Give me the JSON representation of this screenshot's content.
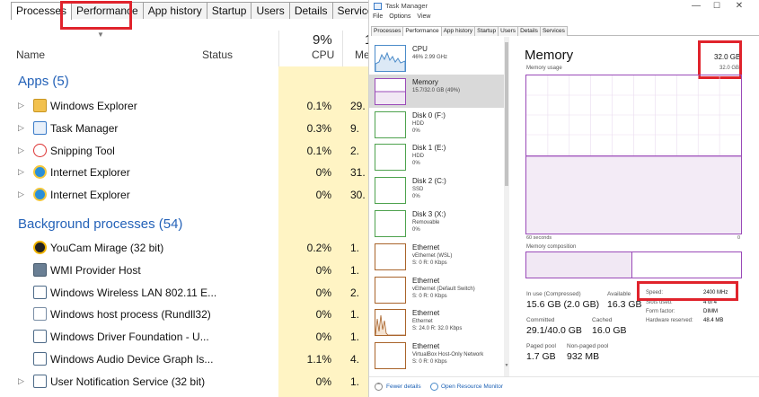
{
  "left": {
    "tabs": [
      "Processes",
      "Performance",
      "App history",
      "Startup",
      "Users",
      "Details",
      "Services"
    ],
    "active_tab": 0,
    "columns": {
      "name": "Name",
      "status": "Status",
      "cpu_pct": "9%",
      "cpu": "CPU",
      "mem_pct": "1",
      "mem": "Me"
    },
    "sections": {
      "apps": "Apps (5)",
      "background": "Background processes (54)"
    },
    "apps": [
      {
        "name": "Windows Explorer",
        "cpu": "0.1%",
        "mem": "29.",
        "icon": "folder-icon"
      },
      {
        "name": "Task Manager",
        "cpu": "0.3%",
        "mem": "9.",
        "icon": "task-manager-icon"
      },
      {
        "name": "Snipping Tool",
        "cpu": "0.1%",
        "mem": "2.",
        "icon": "scissors-icon"
      },
      {
        "name": "Internet Explorer",
        "cpu": "0%",
        "mem": "31.",
        "icon": "internet-explorer-icon"
      },
      {
        "name": "Internet Explorer",
        "cpu": "0%",
        "mem": "30.",
        "icon": "internet-explorer-icon"
      }
    ],
    "background": [
      {
        "name": "YouCam Mirage (32 bit)",
        "cpu": "0.2%",
        "mem": "1.",
        "icon": "youcam-icon",
        "expandable": false
      },
      {
        "name": "WMI Provider Host",
        "cpu": "0%",
        "mem": "1.",
        "icon": "wmi-icon",
        "expandable": false
      },
      {
        "name": "Windows Wireless LAN 802.11 E...",
        "cpu": "0%",
        "mem": "2.",
        "icon": "service-window-icon",
        "expandable": false
      },
      {
        "name": "Windows host process (Rundll32)",
        "cpu": "0%",
        "mem": "1.",
        "icon": "document-icon",
        "expandable": false
      },
      {
        "name": "Windows Driver Foundation - U...",
        "cpu": "0%",
        "mem": "1.",
        "icon": "service-window-icon",
        "expandable": false
      },
      {
        "name": "Windows Audio Device Graph Is...",
        "cpu": "1.1%",
        "mem": "4.",
        "icon": "service-window-icon",
        "expandable": false
      },
      {
        "name": "User Notification Service (32 bit)",
        "cpu": "0%",
        "mem": "1.",
        "icon": "service-window-icon",
        "expandable": true
      }
    ]
  },
  "right": {
    "window_title": "Task Manager",
    "window_buttons": {
      "minimize": "—",
      "maximize": "☐",
      "close": "✕"
    },
    "menu": [
      "File",
      "Options",
      "View"
    ],
    "tabs": [
      "Processes",
      "Performance",
      "App history",
      "Startup",
      "Users",
      "Details",
      "Services"
    ],
    "active_tab": 1,
    "devices": [
      {
        "title": "CPU",
        "sub1": "46% 2.99 GHz",
        "sub2": "",
        "kind": "cpu"
      },
      {
        "title": "Memory",
        "sub1": "15.7/32.0 GB (49%)",
        "sub2": "",
        "kind": "mem",
        "selected": true
      },
      {
        "title": "Disk 0 (F:)",
        "sub1": "HDD",
        "sub2": "0%",
        "kind": "disk"
      },
      {
        "title": "Disk 1 (E:)",
        "sub1": "HDD",
        "sub2": "0%",
        "kind": "disk"
      },
      {
        "title": "Disk 2 (C:)",
        "sub1": "SSD",
        "sub2": "0%",
        "kind": "disk"
      },
      {
        "title": "Disk 3 (X:)",
        "sub1": "Removable",
        "sub2": "0%",
        "kind": "disk"
      },
      {
        "title": "Ethernet",
        "sub1": "vEthernet (WSL)",
        "sub2": "S: 0 R: 0 Kbps",
        "kind": "eth"
      },
      {
        "title": "Ethernet",
        "sub1": "vEthernet (Default Switch)",
        "sub2": "S: 0 R: 0 Kbps",
        "kind": "eth"
      },
      {
        "title": "Ethernet",
        "sub1": "Ethernet",
        "sub2": "S: 24.0 R: 32.0 Kbps",
        "kind": "eth-active"
      },
      {
        "title": "Ethernet",
        "sub1": "VirtualBox Host-Only Network",
        "sub2": "S: 0 R: 0 Kbps",
        "kind": "eth"
      }
    ],
    "memory": {
      "title": "Memory",
      "total": "32.0 GB",
      "usage_label": "Memory usage",
      "max_label": "32.0 GB",
      "graph_left": "60 seconds",
      "graph_right": "0",
      "usage_fraction": 0.49,
      "composition_label": "Memory composition",
      "stats": {
        "in_use_label": "In use (Compressed)",
        "in_use": "15.6 GB (2.0 GB)",
        "available_label": "Available",
        "available": "16.3 GB",
        "committed_label": "Committed",
        "committed": "29.1/40.0 GB",
        "cached_label": "Cached",
        "cached": "16.0 GB",
        "paged_label": "Paged pool",
        "paged": "1.7 GB",
        "nonpaged_label": "Non-paged pool",
        "nonpaged": "932 MB"
      },
      "specs": [
        {
          "label": "Speed:",
          "value": "2400 MHz"
        },
        {
          "label": "Slots used:",
          "value": "4 of 4"
        },
        {
          "label": "Form factor:",
          "value": "DIMM"
        },
        {
          "label": "Hardware reserved:",
          "value": "48.4 MB"
        }
      ]
    },
    "footer": {
      "fewer": "Fewer details",
      "open_rm": "Open Resource Monitor"
    }
  },
  "colors": {
    "highlight": "#e0232c",
    "memory": "#9a4ab8",
    "cpu_column": "#fff4c4",
    "section": "#2462b8"
  }
}
